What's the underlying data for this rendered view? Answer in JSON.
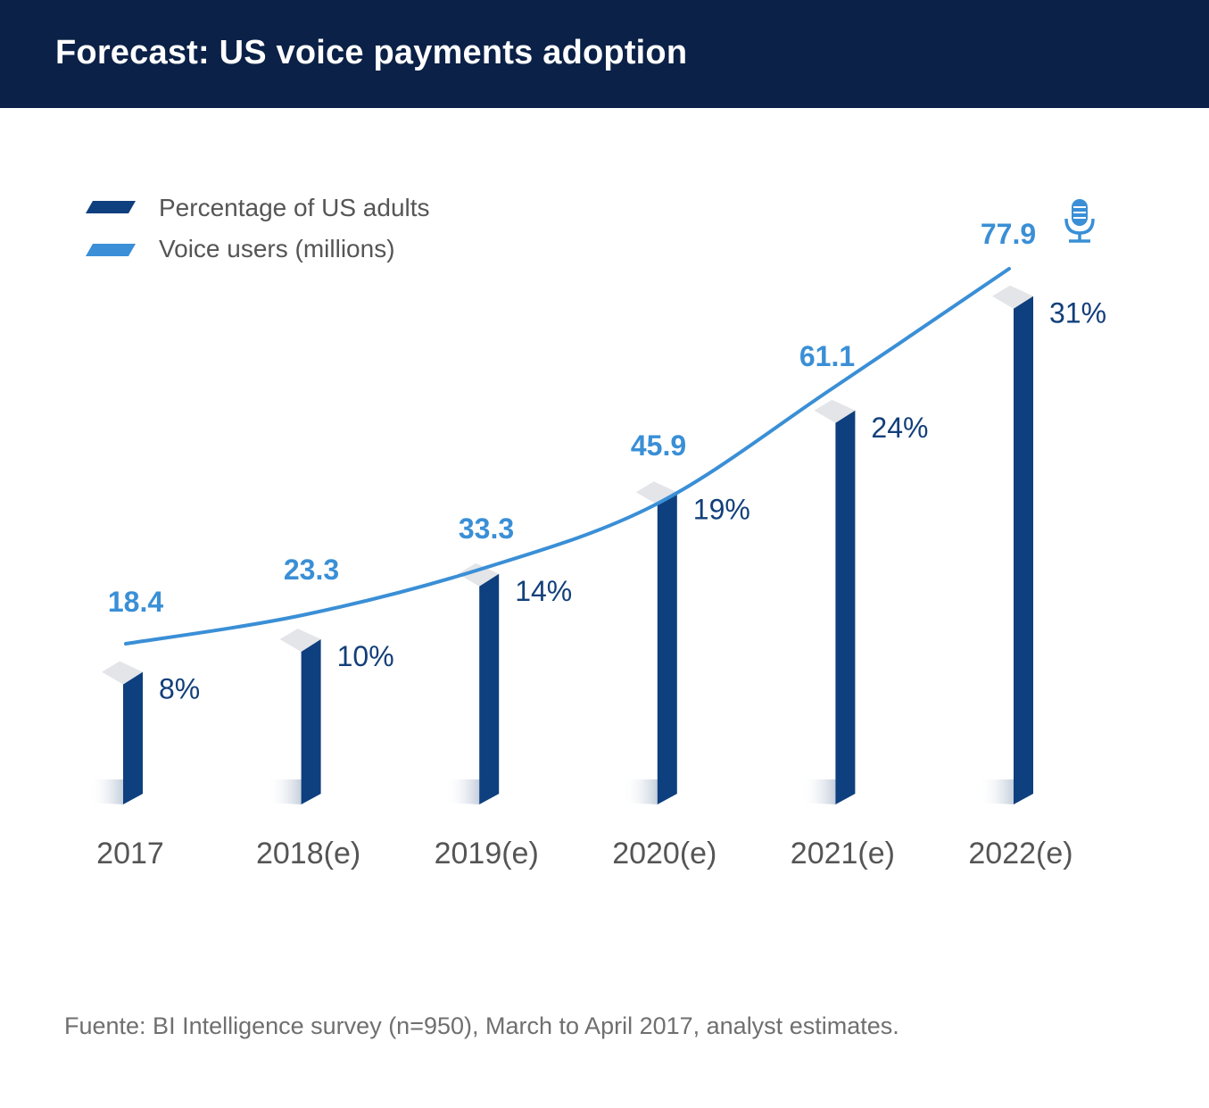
{
  "header": {
    "title": "Forecast: US voice payments adoption"
  },
  "legend": [
    {
      "label": "Percentage of US adults",
      "color": "#0e3f7e"
    },
    {
      "label": "Voice users (millions)",
      "color": "#3a8fd6"
    }
  ],
  "footer": {
    "source": "Fuente: BI Intelligence survey (n=950), March to April 2017, analyst estimates."
  },
  "chart_data": {
    "type": "bar",
    "categories": [
      "2017",
      "2018(e)",
      "2019(e)",
      "2020(e)",
      "2021(e)",
      "2022(e)"
    ],
    "series": [
      {
        "name": "Percentage of US adults",
        "type": "bar",
        "values": [
          8,
          10,
          14,
          19,
          24,
          31
        ],
        "labels": [
          "8%",
          "10%",
          "14%",
          "19%",
          "24%",
          "31%"
        ],
        "color": "#0e3f7e"
      },
      {
        "name": "Voice users (millions)",
        "type": "line",
        "values": [
          18.4,
          23.3,
          33.3,
          45.9,
          61.1,
          77.9
        ],
        "labels": [
          "18.4",
          "23.3",
          "33.3",
          "45.9",
          "61.1",
          "77.9"
        ],
        "color": "#3a8fd6"
      }
    ],
    "icon": "microphone-icon",
    "legend_position": "top-left",
    "grid": false
  }
}
